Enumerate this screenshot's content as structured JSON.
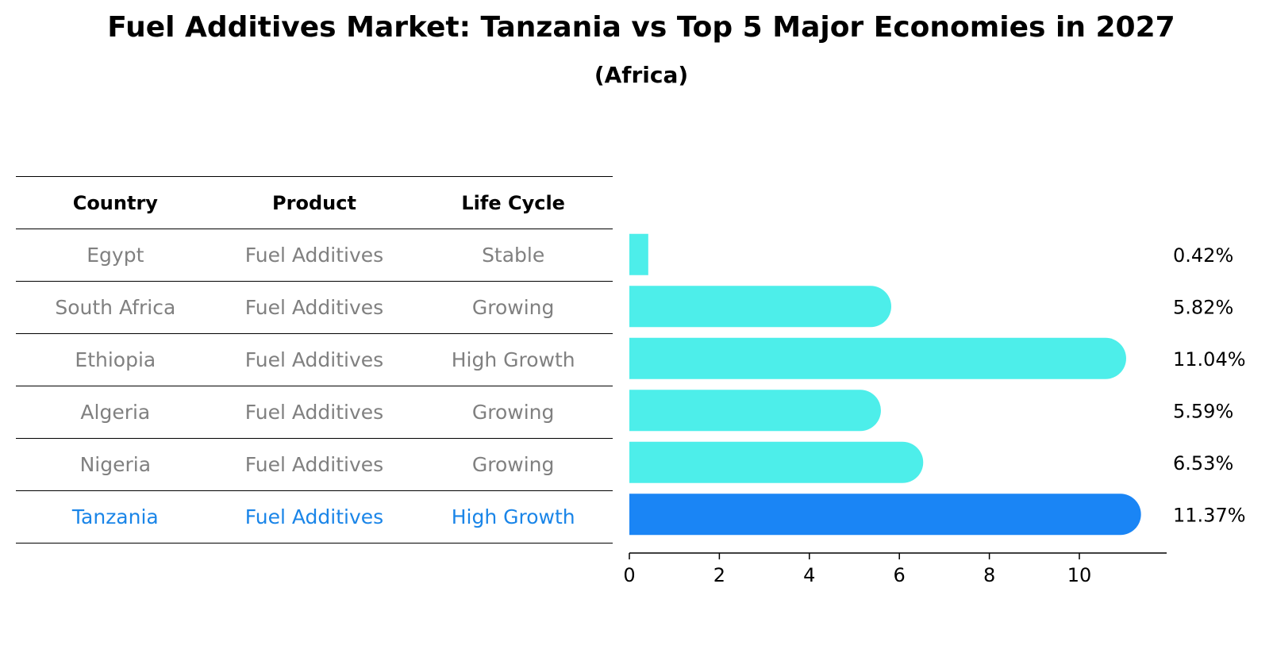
{
  "header": {
    "title": "Fuel Additives Market: Tanzania vs Top 5 Major Economies in 2027",
    "subtitle": "(Africa)"
  },
  "table": {
    "columns": [
      "Country",
      "Product",
      "Life Cycle"
    ],
    "rows": [
      {
        "country": "Egypt",
        "product": "Fuel Additives",
        "life_cycle": "Stable"
      },
      {
        "country": "South Africa",
        "product": "Fuel Additives",
        "life_cycle": "Growing"
      },
      {
        "country": "Ethiopia",
        "product": "Fuel Additives",
        "life_cycle": "High Growth"
      },
      {
        "country": "Algeria",
        "product": "Fuel Additives",
        "life_cycle": "Growing"
      },
      {
        "country": "Nigeria",
        "product": "Fuel Additives",
        "life_cycle": "Growing"
      },
      {
        "country": "Tanzania",
        "product": "Fuel Additives",
        "life_cycle": "High Growth"
      }
    ]
  },
  "chart_data": {
    "type": "bar",
    "orientation": "horizontal",
    "title": "Fuel Additives Market: Tanzania vs Top 5 Major Economies in 2027",
    "subtitle": "(Africa)",
    "categories": [
      "Egypt",
      "South Africa",
      "Ethiopia",
      "Algeria",
      "Nigeria",
      "Tanzania"
    ],
    "values": [
      0.42,
      5.82,
      11.04,
      5.59,
      6.53,
      11.37
    ],
    "value_labels": [
      "0.42%",
      "5.82%",
      "11.04%",
      "5.59%",
      "6.53%",
      "11.37%"
    ],
    "highlight": "Tanzania",
    "xlim": [
      0,
      11.94
    ],
    "xticks": [
      0,
      2,
      4,
      6,
      8,
      10
    ],
    "xtick_labels": [
      "0",
      "2",
      "4",
      "6",
      "8",
      "10"
    ],
    "xlabel": "",
    "ylabel": "",
    "colors": {
      "default": "#4deeea",
      "highlight": "#1a85f5",
      "table_highlight_text": "#1a85e8",
      "table_text": "#808080"
    }
  }
}
